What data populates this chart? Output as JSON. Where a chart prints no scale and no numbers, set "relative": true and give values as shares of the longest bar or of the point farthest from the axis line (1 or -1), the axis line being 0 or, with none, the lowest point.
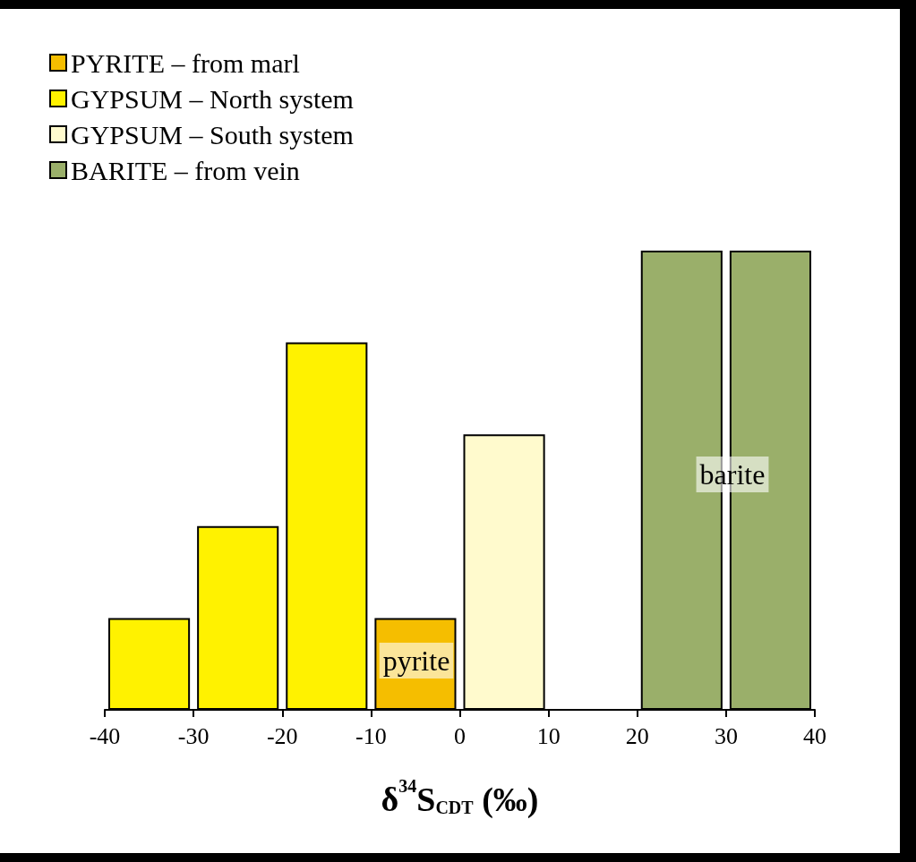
{
  "chart_data": {
    "type": "bar",
    "relative": true,
    "xlabel": "δ$^{34}$S$_{CDT}$ (‰)",
    "x": [
      -35,
      -25,
      -15,
      -5,
      5,
      25,
      35
    ],
    "xlim": [
      -40,
      40
    ],
    "xticks": [
      -40,
      -30,
      -20,
      -10,
      0,
      10,
      20,
      30,
      40
    ],
    "legend": "top left",
    "series": [
      {
        "name": "PYRITE – from marl",
        "color": "#f5be00",
        "values": [
          null,
          null,
          null,
          0.2,
          null,
          null,
          null
        ]
      },
      {
        "name": "GYPSUM – North system",
        "color": "#fff200",
        "values": [
          0.2,
          0.4,
          0.8,
          null,
          null,
          null,
          null
        ]
      },
      {
        "name": "GYPSUM – South system",
        "color": "#fffacd",
        "values": [
          null,
          null,
          null,
          null,
          0.6,
          null,
          null
        ]
      },
      {
        "name": "BARITE – from vein",
        "color": "#9aaf6a",
        "values": [
          null,
          null,
          null,
          null,
          null,
          1,
          1
        ]
      }
    ],
    "annotations": [
      "pyrite",
      "barite"
    ]
  }
}
